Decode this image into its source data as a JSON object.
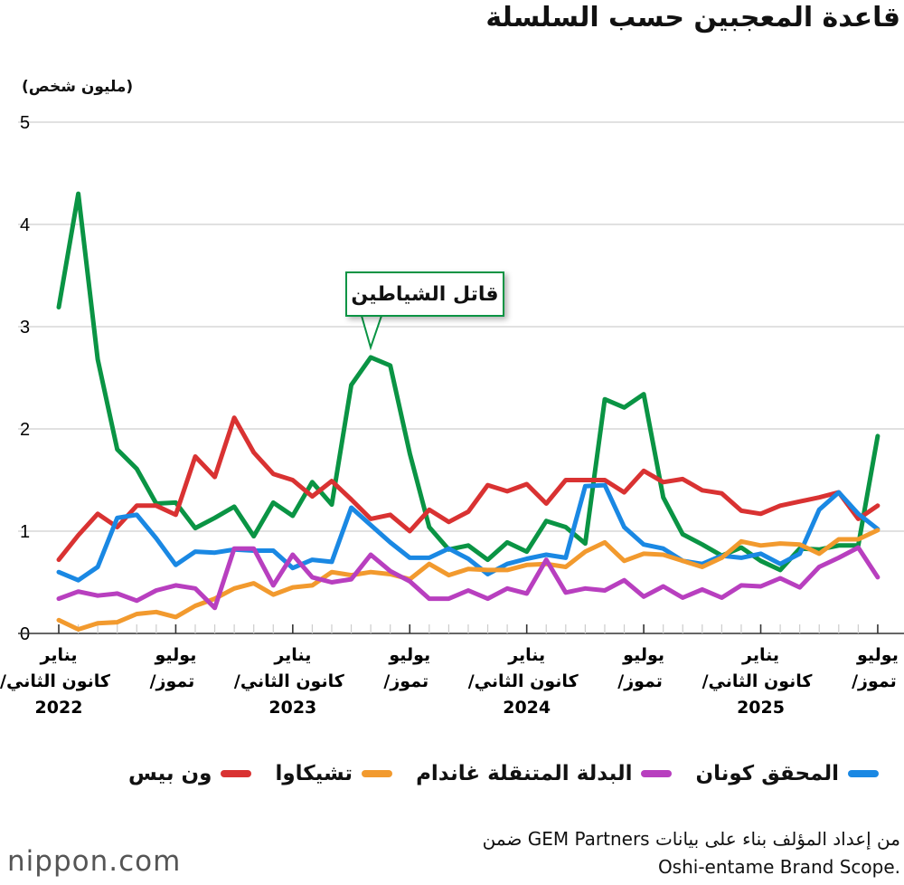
{
  "title": "قاعدة المعجبين حسب السلسلة",
  "unit_label": "(مليون شخص)",
  "callout": "قاتل الشياطين",
  "source": [
    "من إعداد المؤلف بناء على بيانات GEM Partners ضمن",
    ".Oshi-entame Brand Scope"
  ],
  "logo": "nippon.com",
  "legend": [
    {
      "label": "ون بيس",
      "color": "#d93232"
    },
    {
      "label": "تشيكاوا",
      "color": "#f29a2e"
    },
    {
      "label": "البدلة المتنقلة غاندام",
      "color": "#b83fbf"
    },
    {
      "label": "المحقق كونان",
      "color": "#1a88e3"
    }
  ],
  "chart_data": {
    "type": "line",
    "title": "قاعدة المعجبين حسب السلسلة",
    "ylabel": "(مليون شخص)",
    "ylim": [
      0,
      5
    ],
    "yticks": [
      "0",
      "1",
      "2",
      "3",
      "4",
      "5"
    ],
    "grid": true,
    "legend_position": "bottom",
    "x": [
      "2022-01",
      "2022-02",
      "2022-03",
      "2022-04",
      "2022-05",
      "2022-06",
      "2022-07",
      "2022-08",
      "2022-09",
      "2022-10",
      "2022-11",
      "2022-12",
      "2023-01",
      "2023-02",
      "2023-03",
      "2023-04",
      "2023-05",
      "2023-06",
      "2023-07",
      "2023-08",
      "2023-09",
      "2023-10",
      "2023-11",
      "2023-12",
      "2024-01",
      "2024-02",
      "2024-03",
      "2024-04",
      "2024-05",
      "2024-06",
      "2024-07",
      "2024-08",
      "2024-09",
      "2024-10",
      "2024-11",
      "2024-12",
      "2025-01",
      "2025-02",
      "2025-03",
      "2025-04",
      "2025-05",
      "2025-06",
      "2025-07"
    ],
    "xticks": [
      {
        "index": 0,
        "lines": [
          "يناير",
          "كانون الثاني/",
          "2022"
        ]
      },
      {
        "index": 6,
        "lines": [
          "يوليو",
          "تموز/"
        ]
      },
      {
        "index": 12,
        "lines": [
          "يناير",
          "كانون الثاني/",
          "2023"
        ]
      },
      {
        "index": 18,
        "lines": [
          "يوليو",
          "تموز/"
        ]
      },
      {
        "index": 24,
        "lines": [
          "يناير",
          "كانون الثاني/",
          "2024"
        ]
      },
      {
        "index": 30,
        "lines": [
          "يوليو",
          "تموز/"
        ]
      },
      {
        "index": 36,
        "lines": [
          "يناير",
          "كانون الثاني/",
          "2025"
        ]
      },
      {
        "index": 42,
        "lines": [
          "يوليو",
          "تموز/"
        ]
      }
    ],
    "series": [
      {
        "name": "قاتل الشياطين",
        "color": "#0a9444",
        "values": [
          3.19,
          4.3,
          2.68,
          1.8,
          1.61,
          1.27,
          1.28,
          1.03,
          1.13,
          1.24,
          0.95,
          1.28,
          1.15,
          1.48,
          1.26,
          2.43,
          2.7,
          2.62,
          1.76,
          1.04,
          0.82,
          0.86,
          0.72,
          0.89,
          0.8,
          1.1,
          1.04,
          0.88,
          2.29,
          2.21,
          2.34,
          1.33,
          0.97,
          0.87,
          0.76,
          0.84,
          0.71,
          0.62,
          0.83,
          0.82,
          0.86,
          0.86,
          1.93
        ]
      },
      {
        "name": "ون بيس",
        "color": "#d93232",
        "values": [
          0.72,
          0.96,
          1.17,
          1.04,
          1.25,
          1.25,
          1.16,
          1.73,
          1.53,
          2.11,
          1.77,
          1.56,
          1.5,
          1.34,
          1.49,
          1.31,
          1.12,
          1.16,
          1.0,
          1.21,
          1.09,
          1.19,
          1.45,
          1.39,
          1.46,
          1.27,
          1.5,
          1.5,
          1.5,
          1.38,
          1.59,
          1.48,
          1.51,
          1.4,
          1.37,
          1.2,
          1.17,
          1.25,
          1.29,
          1.33,
          1.38,
          1.12,
          1.25
        ]
      },
      {
        "name": "المحقق كونان",
        "color": "#1a88e3",
        "values": [
          0.6,
          0.52,
          0.65,
          1.13,
          1.16,
          0.93,
          0.67,
          0.8,
          0.79,
          0.82,
          0.81,
          0.81,
          0.64,
          0.72,
          0.7,
          1.23,
          1.06,
          0.89,
          0.74,
          0.74,
          0.83,
          0.73,
          0.58,
          0.68,
          0.73,
          0.77,
          0.74,
          1.44,
          1.45,
          1.04,
          0.87,
          0.83,
          0.71,
          0.68,
          0.76,
          0.74,
          0.78,
          0.68,
          0.78,
          1.21,
          1.38,
          1.17,
          1.02
        ]
      },
      {
        "name": "تشيكاوا",
        "color": "#f29a2e",
        "values": [
          0.13,
          0.04,
          0.1,
          0.11,
          0.19,
          0.21,
          0.16,
          0.27,
          0.34,
          0.44,
          0.49,
          0.38,
          0.45,
          0.47,
          0.6,
          0.57,
          0.6,
          0.58,
          0.53,
          0.68,
          0.57,
          0.63,
          0.62,
          0.62,
          0.67,
          0.68,
          0.65,
          0.8,
          0.89,
          0.71,
          0.78,
          0.77,
          0.71,
          0.65,
          0.74,
          0.9,
          0.86,
          0.88,
          0.87,
          0.78,
          0.92,
          0.92,
          1.01
        ]
      },
      {
        "name": "البدلة المتنقلة غاندام",
        "color": "#b83fbf",
        "values": [
          0.34,
          0.41,
          0.37,
          0.39,
          0.32,
          0.42,
          0.47,
          0.44,
          0.25,
          0.83,
          0.83,
          0.47,
          0.77,
          0.55,
          0.5,
          0.53,
          0.77,
          0.61,
          0.51,
          0.34,
          0.34,
          0.42,
          0.34,
          0.44,
          0.39,
          0.72,
          0.4,
          0.44,
          0.42,
          0.52,
          0.36,
          0.46,
          0.35,
          0.43,
          0.35,
          0.47,
          0.46,
          0.54,
          0.45,
          0.65,
          0.74,
          0.84,
          0.55
        ]
      }
    ]
  }
}
